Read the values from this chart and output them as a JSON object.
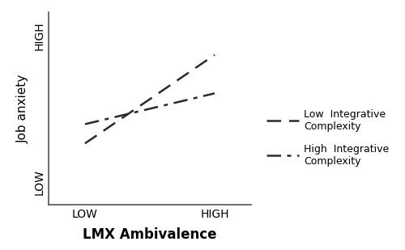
{
  "title": "",
  "xlabel": "LMX Ambivalence",
  "ylabel": "Job anxiety",
  "xlabel_fontsize": 12,
  "ylabel_fontsize": 11,
  "background_color": "#ffffff",
  "xlim": [
    0,
    1
  ],
  "ylim": [
    0,
    1
  ],
  "x_tick_positions": [
    0.18,
    0.82
  ],
  "x_tick_labels": [
    "LOW",
    "HIGH"
  ],
  "y_tick_positions": [
    0.12,
    0.88
  ],
  "y_tick_labels": [
    "LOW",
    "HIGH"
  ],
  "line_color": "#2a2a2a",
  "lines": [
    {
      "x": [
        0.18,
        0.82
      ],
      "y": [
        0.32,
        0.78
      ],
      "linestyle": "--",
      "linewidth": 1.8,
      "label": "Low  Integrative\nComplexity",
      "dashes": [
        7,
        4
      ]
    },
    {
      "x": [
        0.18,
        0.82
      ],
      "y": [
        0.42,
        0.58
      ],
      "linestyle": "-.",
      "linewidth": 1.8,
      "label": "High  Integrative\nComplexity",
      "dashes": [
        7,
        3,
        2,
        3
      ]
    }
  ],
  "legend_fontsize": 9
}
